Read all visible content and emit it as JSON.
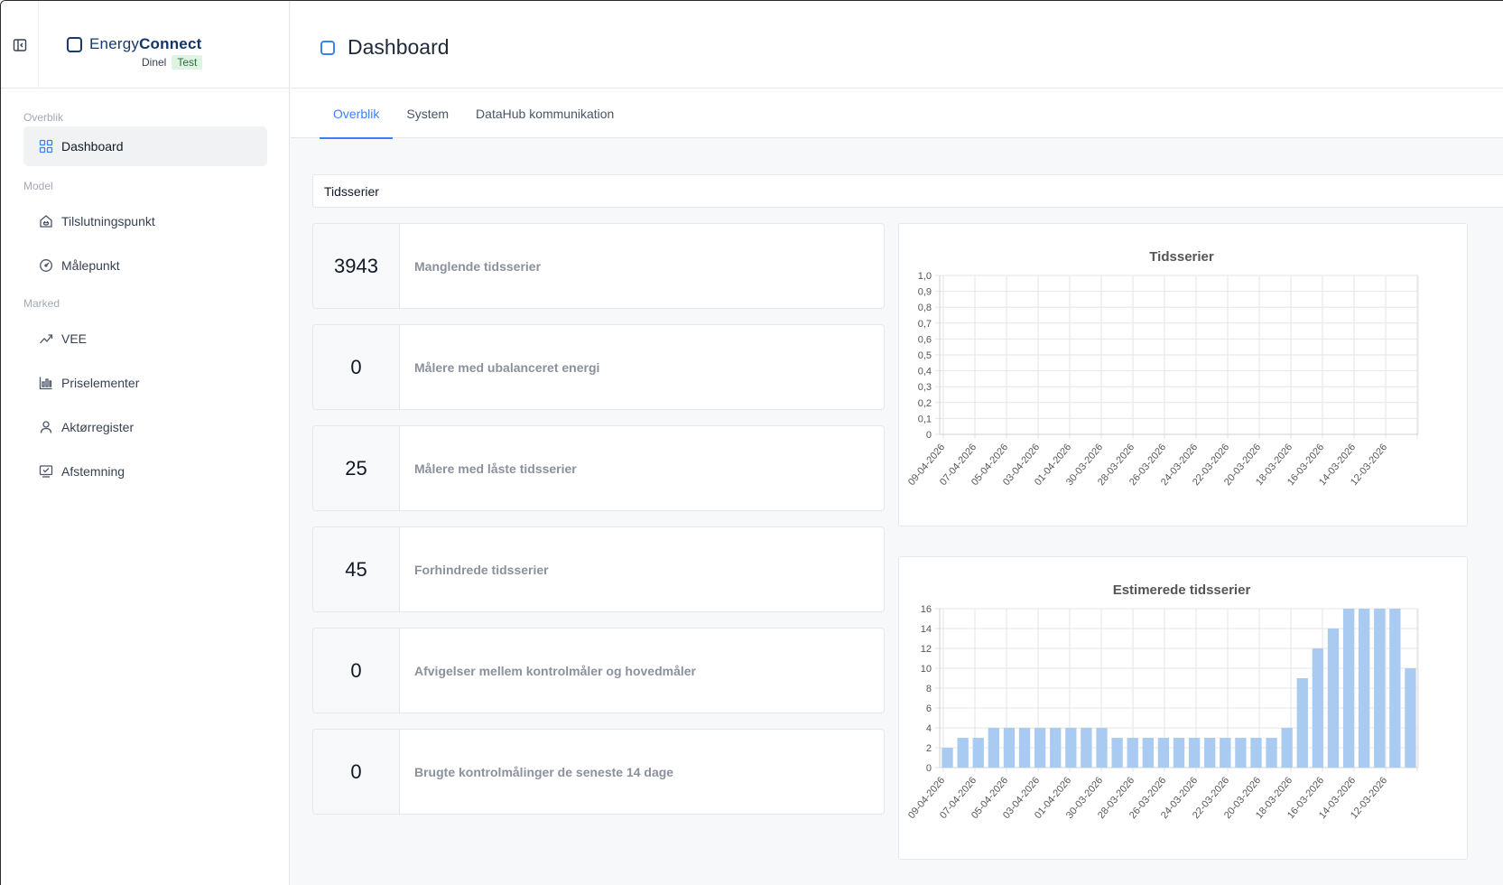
{
  "app": {
    "brand_prefix": "Energy",
    "brand_suffix": "Connect",
    "org": "Dinel",
    "environment": "Test"
  },
  "sidebar": {
    "sections": [
      {
        "label": "Overblik",
        "items": [
          {
            "label": "Dashboard",
            "icon": "grid-icon",
            "active": true
          }
        ]
      },
      {
        "label": "Model",
        "items": [
          {
            "label": "Tilslutningspunkt",
            "icon": "house-plug-icon"
          },
          {
            "label": "Målepunkt",
            "icon": "gauge-icon"
          }
        ]
      },
      {
        "label": "Marked",
        "items": [
          {
            "label": "VEE",
            "icon": "trend-icon"
          },
          {
            "label": "Priselementer",
            "icon": "bar-chart-icon"
          },
          {
            "label": "Aktørregister",
            "icon": "user-icon"
          },
          {
            "label": "Afstemning",
            "icon": "check-screen-icon"
          }
        ]
      }
    ]
  },
  "header": {
    "title": "Dashboard"
  },
  "tabs": [
    {
      "label": "Overblik",
      "active": true
    },
    {
      "label": "System"
    },
    {
      "label": "DataHub kommunikation"
    }
  ],
  "section_title": "Tidsserier",
  "stats": [
    {
      "value": "3943",
      "label": "Manglende tidsserier"
    },
    {
      "value": "0",
      "label": "Målere med ubalanceret energi"
    },
    {
      "value": "25",
      "label": "Målere med låste tidsserier"
    },
    {
      "value": "45",
      "label": "Forhindrede tidsserier"
    },
    {
      "value": "0",
      "label": "Afvigelser mellem kontrolmåler og hovedmåler"
    },
    {
      "value": "0",
      "label": "Brugte kontrolmålinger de seneste 14 dage"
    }
  ],
  "colors": {
    "accent": "#3b82f6",
    "bar": "#a9cbf2",
    "brand": "#163a6b"
  },
  "chart_data": [
    {
      "type": "line",
      "title": "Tidsserier",
      "x_tick_labels": [
        "09-04-2026",
        "07-04-2026",
        "05-04-2026",
        "03-04-2026",
        "01-04-2026",
        "30-03-2026",
        "28-03-2026",
        "26-03-2026",
        "24-03-2026",
        "22-03-2026",
        "20-03-2026",
        "18-03-2026",
        "16-03-2026",
        "14-03-2026",
        "12-03-2026"
      ],
      "y_tick_labels": [
        "0",
        "0,1",
        "0,2",
        "0,3",
        "0,4",
        "0,5",
        "0,6",
        "0,7",
        "0,8",
        "0,9",
        "1,0"
      ],
      "ylim": [
        0,
        1
      ],
      "values": [],
      "grid": true
    },
    {
      "type": "bar",
      "title": "Estimerede tidsserier",
      "x_tick_labels": [
        "09-04-2026",
        "07-04-2026",
        "05-04-2026",
        "03-04-2026",
        "01-04-2026",
        "30-03-2026",
        "28-03-2026",
        "26-03-2026",
        "24-03-2026",
        "22-03-2026",
        "20-03-2026",
        "18-03-2026",
        "16-03-2026",
        "14-03-2026",
        "12-03-2026"
      ],
      "y_tick_labels": [
        "0",
        "2",
        "4",
        "6",
        "8",
        "10",
        "12",
        "14",
        "16"
      ],
      "ylim": [
        0,
        16
      ],
      "values": [
        2,
        3,
        3,
        4,
        4,
        4,
        4,
        4,
        4,
        4,
        4,
        3,
        3,
        3,
        3,
        3,
        3,
        3,
        3,
        3,
        3,
        3,
        4,
        9,
        12,
        14,
        16,
        16,
        16,
        16,
        10
      ],
      "grid": true
    }
  ]
}
